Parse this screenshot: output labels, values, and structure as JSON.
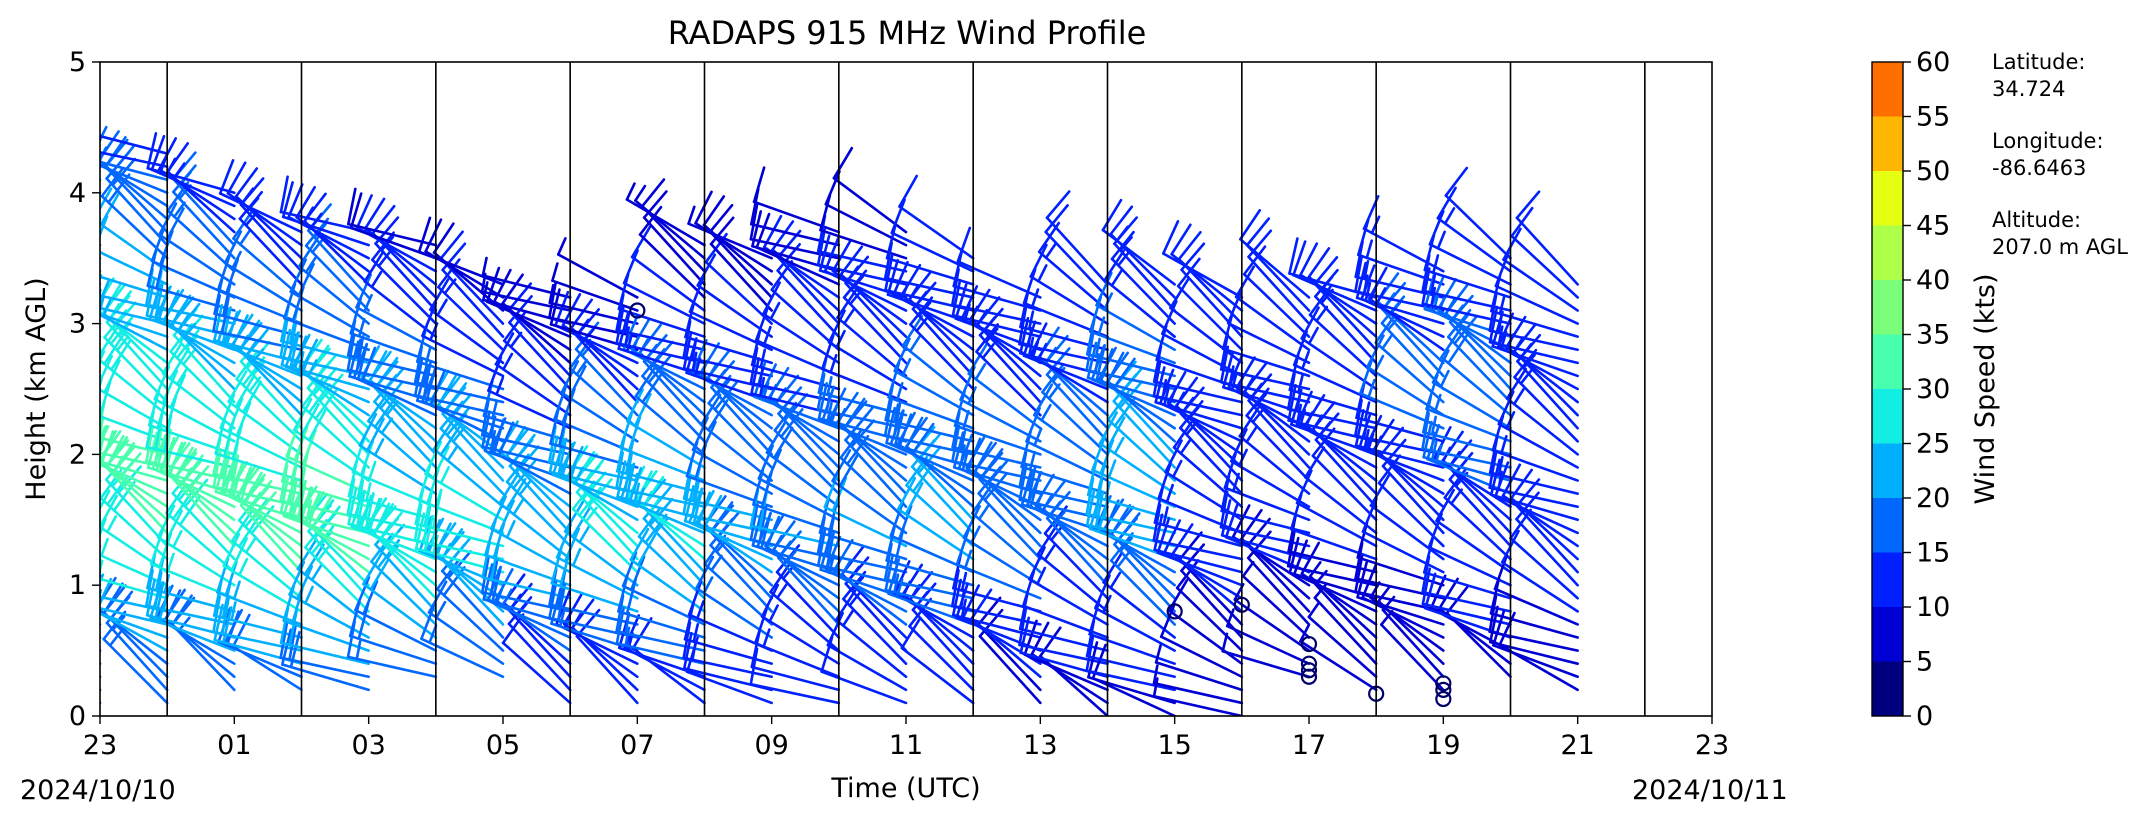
{
  "chart_data": {
    "type": "wind_barbs",
    "title": "RADAPS 915 MHz Wind Profile",
    "xlabel": "Time (UTC)",
    "ylabel": "Height (km AGL)",
    "x_tick_labels": [
      "23",
      "01",
      "03",
      "05",
      "07",
      "09",
      "11",
      "13",
      "15",
      "17",
      "19",
      "21",
      "23"
    ],
    "y_tick_labels": [
      "0",
      "1",
      "2",
      "3",
      "4",
      "5"
    ],
    "ylim": [
      0,
      5
    ],
    "x_hours_from_start": [
      0,
      24
    ],
    "start_date_label": "2024/10/10",
    "end_date_label": "2024/10/11",
    "colorbar": {
      "label": "Wind Speed (kts)",
      "ticks": [
        "0",
        "5",
        "10",
        "15",
        "20",
        "25",
        "30",
        "35",
        "40",
        "45",
        "50",
        "55",
        "60"
      ],
      "colors": [
        "#00007f",
        "#0000d5",
        "#0020ff",
        "#0068ff",
        "#00b0ff",
        "#12eee4",
        "#48ffad",
        "#7bff7b",
        "#adff48",
        "#e4ff12",
        "#ffb600",
        "#ff6f00",
        "#ff2500",
        "#930000"
      ]
    },
    "site_info": [
      {
        "label": "Latitude:",
        "value": "34.724"
      },
      {
        "label": "Longitude:",
        "value": "-86.6463"
      },
      {
        "label": "Altitude:",
        "value": "207.0 m AGL"
      }
    ],
    "profiles": [
      {
        "hour": 0,
        "min_height_km": 0.1,
        "max_height_km": 4.4,
        "surface_speed_kts": 10,
        "jet_height_km": 2.0,
        "jet_speed_kts": 32,
        "top_speed_kts": 14,
        "direction_deg": 300
      },
      {
        "hour": 1,
        "min_height_km": 0.1,
        "max_height_km": 4.3,
        "surface_speed_kts": 16,
        "jet_height_km": 1.6,
        "jet_speed_kts": 33,
        "top_speed_kts": 14,
        "direction_deg": 300
      },
      {
        "hour": 2,
        "min_height_km": 0.2,
        "max_height_km": 4.0,
        "surface_speed_kts": 17,
        "jet_height_km": 1.5,
        "jet_speed_kts": 33,
        "top_speed_kts": 12,
        "direction_deg": 300
      },
      {
        "hour": 3,
        "min_height_km": 0.2,
        "max_height_km": 3.7,
        "surface_speed_kts": 18,
        "jet_height_km": 1.4,
        "jet_speed_kts": 34,
        "top_speed_kts": 11,
        "direction_deg": 300
      },
      {
        "hour": 4,
        "min_height_km": 0.2,
        "max_height_km": 3.7,
        "surface_speed_kts": 18,
        "jet_height_km": 1.4,
        "jet_speed_kts": 34,
        "top_speed_kts": 10,
        "direction_deg": 300
      },
      {
        "hour": 5,
        "min_height_km": 0.3,
        "max_height_km": 3.6,
        "surface_speed_kts": 17,
        "jet_height_km": 1.2,
        "jet_speed_kts": 29,
        "top_speed_kts": 9,
        "direction_deg": 300
      },
      {
        "hour": 6,
        "min_height_km": 0.3,
        "max_height_km": 3.3,
        "surface_speed_kts": 15,
        "jet_height_km": 1.3,
        "jet_speed_kts": 28,
        "top_speed_kts": 8,
        "direction_deg": 300
      },
      {
        "hour": 7,
        "min_height_km": 0.1,
        "max_height_km": 3.2,
        "surface_speed_kts": 10,
        "jet_height_km": 1.2,
        "jet_speed_kts": 24,
        "top_speed_kts": 5,
        "direction_deg": 300
      },
      {
        "hour": 8,
        "min_height_km": 0.1,
        "max_height_km": 3.2,
        "surface_speed_kts": 10,
        "jet_height_km": 1.2,
        "jet_speed_kts": 28,
        "top_speed_kts": 5,
        "direction_deg": 300
      },
      {
        "hour": 9,
        "min_height_km": 0.1,
        "max_height_km": 3.6,
        "surface_speed_kts": 11,
        "jet_height_km": 1.2,
        "jet_speed_kts": 26,
        "top_speed_kts": 6,
        "direction_deg": 300
      },
      {
        "hour": 10,
        "min_height_km": 0.1,
        "max_height_km": 3.5,
        "surface_speed_kts": 11,
        "jet_height_km": 1.3,
        "jet_speed_kts": 22,
        "top_speed_kts": 7,
        "direction_deg": 300
      },
      {
        "hour": 11,
        "min_height_km": 0.1,
        "max_height_km": 3.7,
        "surface_speed_kts": 11,
        "jet_height_km": 1.3,
        "jet_speed_kts": 20,
        "top_speed_kts": 8,
        "direction_deg": 300
      },
      {
        "hour": 12,
        "min_height_km": 0.1,
        "max_height_km": 3.7,
        "surface_speed_kts": 11,
        "jet_height_km": 1.3,
        "jet_speed_kts": 20,
        "top_speed_kts": 9,
        "direction_deg": 300
      },
      {
        "hour": 13,
        "min_height_km": 0.1,
        "max_height_km": 3.5,
        "surface_speed_kts": 10,
        "jet_height_km": 1.3,
        "jet_speed_kts": 21,
        "top_speed_kts": 10,
        "direction_deg": 300
      },
      {
        "hour": 14,
        "min_height_km": 0.1,
        "max_height_km": 3.2,
        "surface_speed_kts": 9,
        "jet_height_km": 1.3,
        "jet_speed_kts": 19,
        "top_speed_kts": 11,
        "direction_deg": 300
      },
      {
        "hour": 15,
        "min_height_km": 0.0,
        "max_height_km": 3.3,
        "surface_speed_kts": 8,
        "jet_height_km": 1.4,
        "jet_speed_kts": 18,
        "top_speed_kts": 12,
        "direction_deg": 300
      },
      {
        "hour": 16,
        "min_height_km": 0.0,
        "max_height_km": 3.3,
        "surface_speed_kts": 8,
        "jet_height_km": 1.5,
        "jet_speed_kts": 24,
        "top_speed_kts": 12,
        "direction_deg": 300
      },
      {
        "hour": 17,
        "min_height_km": 0.0,
        "max_height_km": 3.2,
        "surface_speed_kts": 6,
        "jet_height_km": 1.6,
        "jet_speed_kts": 14,
        "top_speed_kts": 11,
        "direction_deg": 300
      },
      {
        "hour": 18,
        "min_height_km": 0.3,
        "max_height_km": 3.2,
        "surface_speed_kts": 5,
        "jet_height_km": 1.8,
        "jet_speed_kts": 15,
        "top_speed_kts": 10,
        "direction_deg": 300
      },
      {
        "hour": 19,
        "min_height_km": 0.2,
        "max_height_km": 3.2,
        "surface_speed_kts": 5,
        "jet_height_km": 2.2,
        "jet_speed_kts": 15,
        "top_speed_kts": 11,
        "direction_deg": 300
      },
      {
        "hour": 20,
        "min_height_km": 0.2,
        "max_height_km": 3.4,
        "surface_speed_kts": 6,
        "jet_height_km": 2.4,
        "jet_speed_kts": 16,
        "top_speed_kts": 13,
        "direction_deg": 300
      },
      {
        "hour": 21,
        "min_height_km": 0.3,
        "max_height_km": 3.5,
        "surface_speed_kts": 9,
        "jet_height_km": 2.4,
        "jet_speed_kts": 18,
        "top_speed_kts": 12,
        "direction_deg": 300
      },
      {
        "hour": 22,
        "min_height_km": 0.2,
        "max_height_km": 3.3,
        "surface_speed_kts": 8,
        "jet_height_km": 2.0,
        "jet_speed_kts": 14,
        "top_speed_kts": 12,
        "direction_deg": 300
      }
    ],
    "calm_markers": [
      {
        "hour": 8,
        "height_km": 3.1
      },
      {
        "hour": 16,
        "height_km": 0.8
      },
      {
        "hour": 17,
        "height_km": 0.85
      },
      {
        "hour": 18,
        "height_km": 0.55
      },
      {
        "hour": 18,
        "height_km": 0.4
      },
      {
        "hour": 18,
        "height_km": 0.35
      },
      {
        "hour": 18,
        "height_km": 0.3
      },
      {
        "hour": 19,
        "height_km": 0.17
      },
      {
        "hour": 20,
        "height_km": 0.25
      },
      {
        "hour": 20,
        "height_km": 0.2
      },
      {
        "hour": 20,
        "height_km": 0.13
      }
    ]
  }
}
